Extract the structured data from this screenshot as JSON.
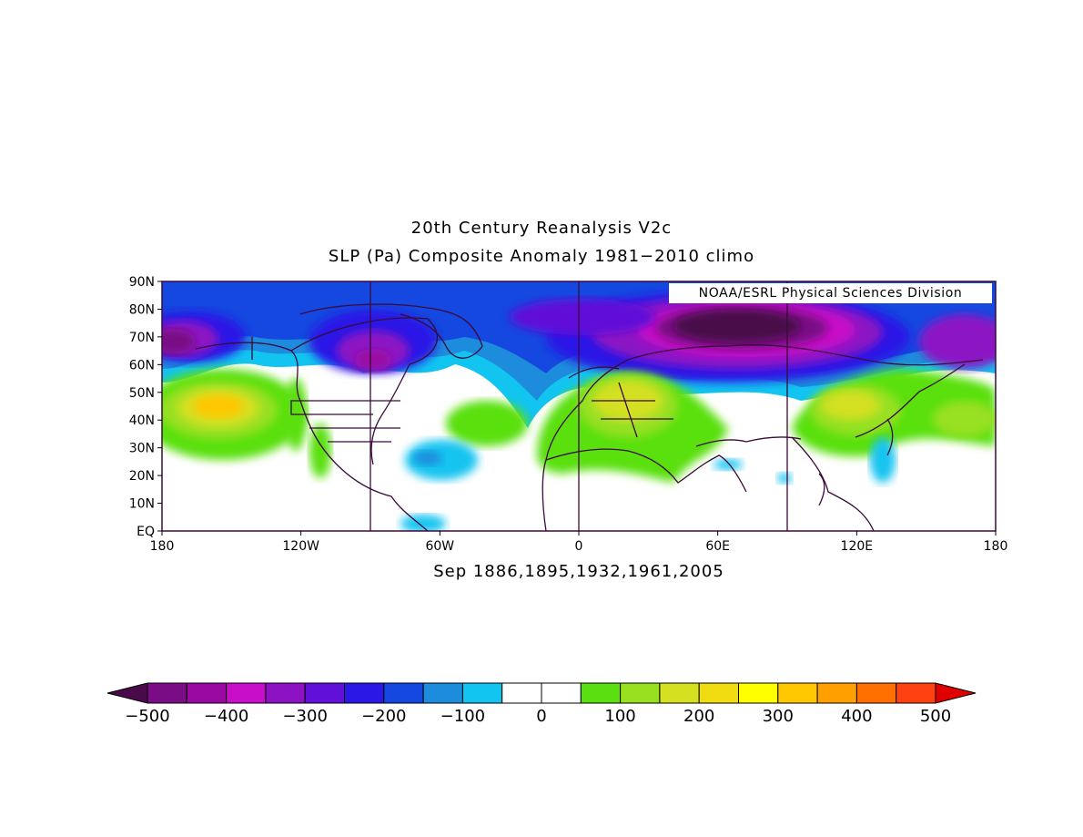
{
  "title": "20th Century Reanalysis V2c",
  "subtitle": "SLP (Pa) Composite Anomaly 1981−2010 climo",
  "bottom_label": "Sep 1886,1895,1932,1961,2005",
  "credit": "NOAA/ESRL Physical Sciences Division",
  "map": {
    "lon_range": [
      -180,
      180
    ],
    "lat_range": [
      0,
      90
    ],
    "lon_ticks": [
      {
        "value": -180,
        "label": "180"
      },
      {
        "value": -120,
        "label": "120W"
      },
      {
        "value": -60,
        "label": "60W"
      },
      {
        "value": 0,
        "label": "0"
      },
      {
        "value": 60,
        "label": "60E"
      },
      {
        "value": 120,
        "label": "120E"
      },
      {
        "value": 180,
        "label": "180"
      }
    ],
    "lat_ticks": [
      {
        "value": 90,
        "label": "90N"
      },
      {
        "value": 80,
        "label": "80N"
      },
      {
        "value": 70,
        "label": "70N"
      },
      {
        "value": 60,
        "label": "60N"
      },
      {
        "value": 50,
        "label": "50N"
      },
      {
        "value": 40,
        "label": "40N"
      },
      {
        "value": 30,
        "label": "30N"
      },
      {
        "value": 20,
        "label": "20N"
      },
      {
        "value": 10,
        "label": "10N"
      },
      {
        "value": 0,
        "label": "EQ"
      }
    ],
    "grid_lons": [
      -90,
      0,
      90
    ]
  },
  "colorbar": {
    "labels": [
      "−500",
      "−400",
      "−300",
      "−200",
      "−100",
      "0",
      "100",
      "200",
      "300",
      "400",
      "500"
    ],
    "colors": [
      "#4a0a4a",
      "#7a0d85",
      "#9a0aa3",
      "#c80ec8",
      "#8c12c4",
      "#6010d8",
      "#2c18e6",
      "#1448e0",
      "#1e8cdc",
      "#12c4f0",
      "#ffffff",
      "#ffffff",
      "#5ae010",
      "#98e020",
      "#d4e020",
      "#f0dc10",
      "#ffff00",
      "#ffc800",
      "#ffa000",
      "#ff7000",
      "#ff4010",
      "#e00000"
    ]
  }
}
